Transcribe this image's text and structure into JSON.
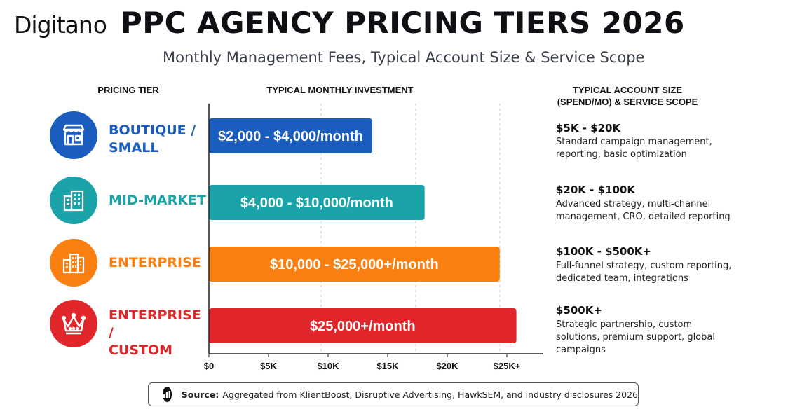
{
  "brand": {
    "logo_text": "Digitan",
    "logo_last_letter": "o"
  },
  "header": {
    "title": "PPC AGENCY PRICING TIERS 2026",
    "subtitle": "Monthly Management Fees, Typical Account Size & Service Scope"
  },
  "columns": {
    "tier": "PRICING TIER",
    "investment": "TYPICAL MONTHLY INVESTMENT",
    "size_line1": "TYPICAL ACCOUNT SIZE",
    "size_line2": "(SPEND/MO) & SERVICE SCOPE"
  },
  "tiers": [
    {
      "label": "BOUTIQUE /\nSMALL",
      "icon": "storefront-icon",
      "color": "#1a5dbe",
      "size": "$5K - $20K",
      "scope": "Standard campaign management, reporting, basic optimization"
    },
    {
      "label": "MID-MARKET",
      "icon": "office-building-icon",
      "color": "#1aa3a8",
      "size": "$20K - $100K",
      "scope": "Advanced strategy, multi-channel management, CRO, detailed reporting"
    },
    {
      "label": "ENTERPRISE",
      "icon": "city-buildings-icon",
      "color": "#f98010",
      "size": "$100K - $500K+",
      "scope": "Full-funnel strategy, custom reporting, dedicated team, integrations"
    },
    {
      "label": "ENTERPRISE /\nCUSTOM",
      "icon": "crown-icon",
      "color": "#e0262b",
      "size": "$500K+",
      "scope": "Strategic partnership, custom solutions, premium support, global campaigns"
    }
  ],
  "chart_data": {
    "type": "bar",
    "orientation": "horizontal",
    "title": "",
    "xlabel": "TYPICAL MONTHLY INVESTMENT",
    "xlim": [
      0,
      26000
    ],
    "x_ticks": [
      {
        "value": 0,
        "label": "$0"
      },
      {
        "value": 5000,
        "label": "$5K"
      },
      {
        "value": 10000,
        "label": "$10K"
      },
      {
        "value": 15000,
        "label": "$15K"
      },
      {
        "value": 20000,
        "label": "$20K"
      },
      {
        "value": 25000,
        "label": "$25K+"
      }
    ],
    "categories": [
      "BOUTIQUE / SMALL",
      "MID-MARKET",
      "ENTERPRISE",
      "ENTERPRISE / CUSTOM"
    ],
    "values": [
      13700,
      18100,
      24400,
      25800
    ],
    "bar_labels": [
      "$2,000 - $4,000/month",
      "$4,000 - $10,000/month",
      "$10,000 - $25,000+/month",
      "$25,000+/month"
    ],
    "colors": [
      "#1a5dbe",
      "#1aa3a8",
      "#f98010",
      "#e0262b"
    ],
    "grid": "dashed vertical"
  },
  "source": {
    "label": "Source:",
    "text": "Aggregated from KlientBoost, Disruptive Advertising, HawkSEM, and industry disclosures 2026",
    "icon": "bar-chart-icon"
  }
}
